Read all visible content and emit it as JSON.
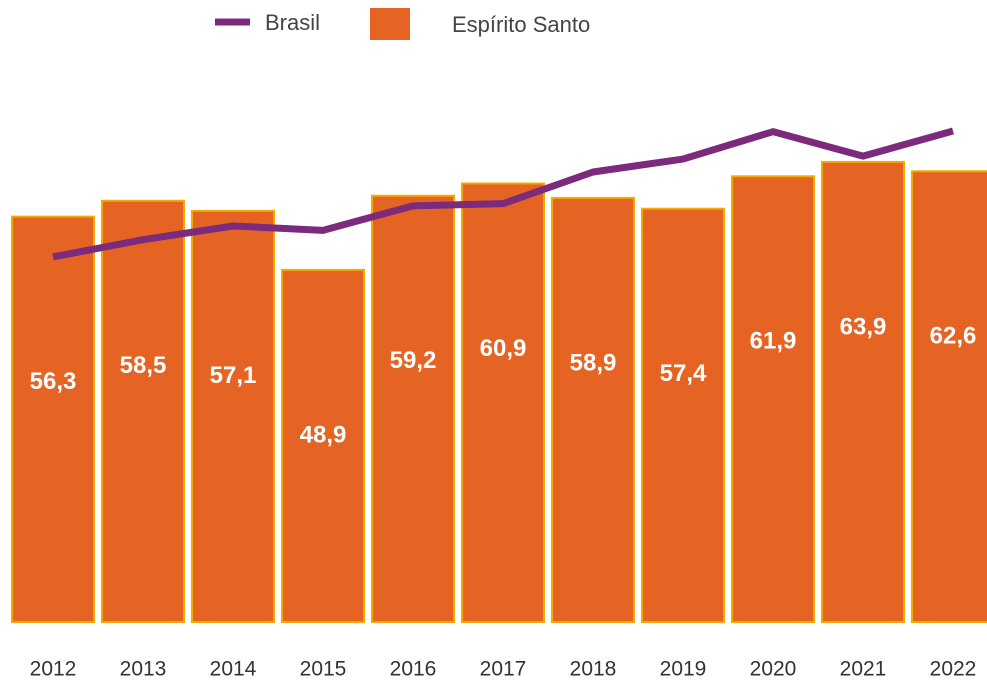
{
  "chart_data": {
    "type": "bar",
    "categories": [
      "2012",
      "2013",
      "2014",
      "2015",
      "2016",
      "2017",
      "2018",
      "2019",
      "2020",
      "2021",
      "2022"
    ],
    "series": [
      {
        "name": "Espírito Santo",
        "type": "bar",
        "color": "#e66423",
        "values": [
          56.3,
          58.5,
          57.1,
          48.9,
          59.2,
          60.9,
          58.9,
          57.4,
          61.9,
          63.9,
          62.6
        ],
        "value_labels": [
          "56,3",
          "58,5",
          "57,1",
          "48,9",
          "59,2",
          "60,9",
          "58,9",
          "57,4",
          "61,9",
          "63,9",
          "62,6"
        ]
      },
      {
        "name": "Brasil",
        "type": "line",
        "color": "#7b2a7c",
        "values": [
          50.7,
          53.1,
          55.0,
          54.4,
          57.8,
          58.1,
          62.5,
          64.3,
          68.1,
          64.7,
          68.2
        ]
      }
    ],
    "ylim": [
      0,
      75
    ]
  }
}
